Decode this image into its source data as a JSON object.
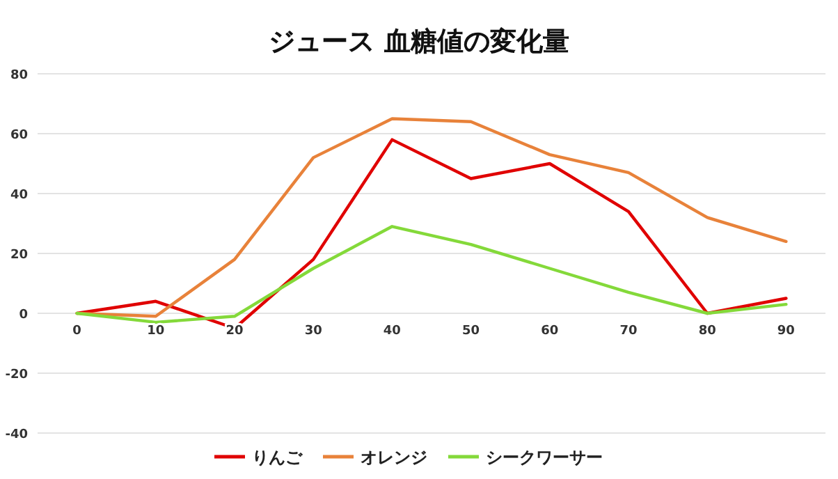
{
  "chart_data": {
    "type": "line",
    "title": "ジュース 血糖値の変化量",
    "categories": [
      "0",
      "10",
      "20",
      "30",
      "40",
      "50",
      "60",
      "70",
      "80",
      "90"
    ],
    "series": [
      {
        "name": "りんご",
        "color": "#e00000",
        "values": [
          0,
          4,
          -5,
          18,
          58,
          45,
          50,
          34,
          0,
          5
        ]
      },
      {
        "name": "オレンジ",
        "color": "#e8823a",
        "values": [
          0,
          -1,
          18,
          52,
          65,
          64,
          53,
          47,
          32,
          24
        ]
      },
      {
        "name": "シークワーサー",
        "color": "#84d93a",
        "values": [
          0,
          -3,
          -1,
          15,
          29,
          23,
          15,
          7,
          0,
          3
        ]
      }
    ],
    "ylim": [
      -40,
      80
    ],
    "yticks": [
      -40,
      -20,
      0,
      20,
      40,
      60,
      80
    ],
    "grid": "y",
    "legend": "bottom",
    "marker": "none",
    "line_style": "solid"
  }
}
